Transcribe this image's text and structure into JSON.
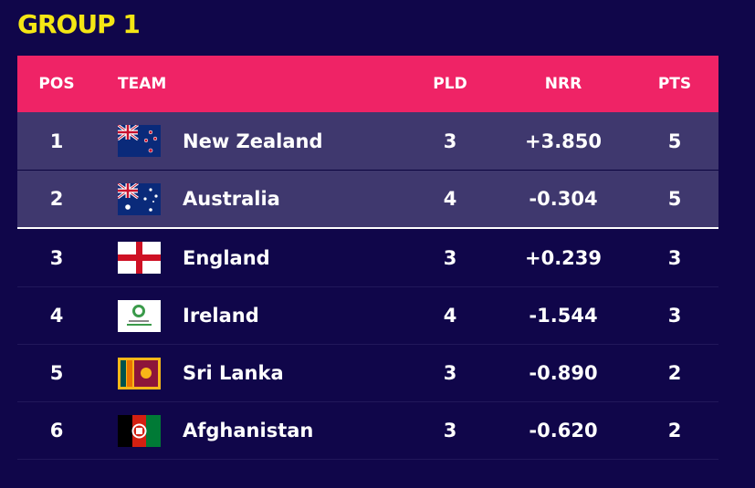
{
  "header": {
    "title": "GROUP 1"
  },
  "table": {
    "columns": [
      "POS",
      "TEAM",
      "PLD",
      "NRR",
      "PTS"
    ],
    "rows": [
      [
        1,
        "New Zealand",
        3,
        "+3.850",
        5
      ],
      [
        2,
        "Australia",
        4,
        "-0.304",
        5
      ],
      [
        3,
        "England",
        3,
        "+0.239",
        3
      ],
      [
        4,
        "Ireland",
        4,
        "-1.544",
        3
      ],
      [
        5,
        "Sri Lanka",
        3,
        "-0.890",
        2
      ],
      [
        6,
        "Afghanistan",
        3,
        "-0.620",
        2
      ]
    ]
  }
}
